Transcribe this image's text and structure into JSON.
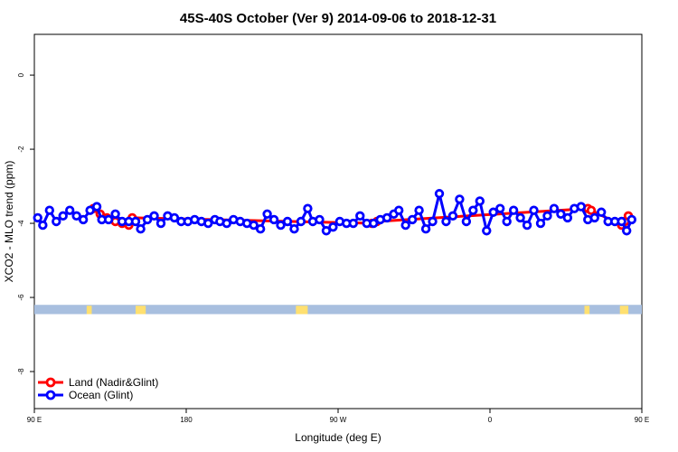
{
  "chart_data": {
    "type": "line",
    "title": "45S-40S October (Ver 9)   2014-09-06 to 2018-12-31",
    "xlabel": "Longitude (deg E)",
    "ylabel": "XCO2 - MLO trend (ppm)",
    "xlim": [
      90,
      450
    ],
    "ylim": [
      -9,
      1.1
    ],
    "x_ticks": [
      {
        "value": 90,
        "label": "90 E"
      },
      {
        "value": 180,
        "label": "180"
      },
      {
        "value": 270,
        "label": "90 W"
      },
      {
        "value": 360,
        "label": "0"
      },
      {
        "value": 450,
        "label": "90 E"
      },
      {
        "value": 540,
        "label": "180"
      }
    ],
    "y_ticks": [
      {
        "value": 0,
        "label": "0"
      },
      {
        "value": -2,
        "label": "-2"
      },
      {
        "value": -4,
        "label": "-4"
      },
      {
        "value": -6,
        "label": "-6"
      },
      {
        "value": -8,
        "label": "-8"
      }
    ],
    "legend_position": "bottom-left",
    "colors": {
      "land": "#ff0000",
      "ocean": "#0000ff",
      "sea_band": "#a8bfdf",
      "land_band": "#ffe070"
    },
    "series": [
      {
        "name": "Land (Nadir&Glint)",
        "color": "#ff0000",
        "points": [
          [
            125,
            -3.6
          ],
          [
            129,
            -3.75
          ],
          [
            133,
            -3.85
          ],
          [
            138,
            -3.95
          ],
          [
            142,
            -4.0
          ],
          [
            146,
            -4.05
          ],
          [
            148,
            -3.85
          ],
          [
            290,
            -4.0
          ],
          [
            293,
            -3.95
          ],
          [
            418,
            -3.6
          ],
          [
            420,
            -3.65
          ],
          [
            438,
            -4.05
          ],
          [
            440,
            -3.95
          ],
          [
            442,
            -3.8
          ]
        ]
      },
      {
        "name": "Ocean (Glint)",
        "color": "#0000ff",
        "points": [
          [
            92,
            -3.85
          ],
          [
            95,
            -4.05
          ],
          [
            99,
            -3.65
          ],
          [
            103,
            -3.95
          ],
          [
            107,
            -3.8
          ],
          [
            111,
            -3.65
          ],
          [
            115,
            -3.8
          ],
          [
            119,
            -3.9
          ],
          [
            123,
            -3.65
          ],
          [
            127,
            -3.55
          ],
          [
            130,
            -3.9
          ],
          [
            134,
            -3.9
          ],
          [
            138,
            -3.75
          ],
          [
            142,
            -3.95
          ],
          [
            146,
            -3.95
          ],
          [
            150,
            -3.95
          ],
          [
            153,
            -4.15
          ],
          [
            157,
            -3.9
          ],
          [
            161,
            -3.8
          ],
          [
            165,
            -4.0
          ],
          [
            169,
            -3.8
          ],
          [
            173,
            -3.85
          ],
          [
            177,
            -3.95
          ],
          [
            181,
            -3.95
          ],
          [
            185,
            -3.9
          ],
          [
            189,
            -3.95
          ],
          [
            193,
            -4.0
          ],
          [
            197,
            -3.9
          ],
          [
            200,
            -3.95
          ],
          [
            204,
            -4.0
          ],
          [
            208,
            -3.9
          ],
          [
            212,
            -3.95
          ],
          [
            216,
            -4.0
          ],
          [
            220,
            -4.05
          ],
          [
            224,
            -4.15
          ],
          [
            228,
            -3.75
          ],
          [
            232,
            -3.9
          ],
          [
            236,
            -4.05
          ],
          [
            240,
            -3.95
          ],
          [
            244,
            -4.15
          ],
          [
            248,
            -3.95
          ],
          [
            252,
            -3.6
          ],
          [
            255,
            -3.95
          ],
          [
            259,
            -3.9
          ],
          [
            263,
            -4.2
          ],
          [
            267,
            -4.1
          ],
          [
            271,
            -3.95
          ],
          [
            275,
            -4.0
          ],
          [
            279,
            -4.0
          ],
          [
            283,
            -3.8
          ],
          [
            287,
            -4.0
          ],
          [
            291,
            -4.0
          ],
          [
            295,
            -3.9
          ],
          [
            299,
            -3.85
          ],
          [
            303,
            -3.75
          ],
          [
            306,
            -3.65
          ],
          [
            310,
            -4.05
          ],
          [
            314,
            -3.9
          ],
          [
            318,
            -3.65
          ],
          [
            322,
            -4.15
          ],
          [
            326,
            -3.95
          ],
          [
            330,
            -3.2
          ],
          [
            334,
            -3.95
          ],
          [
            338,
            -3.8
          ],
          [
            342,
            -3.35
          ],
          [
            346,
            -3.95
          ],
          [
            350,
            -3.65
          ],
          [
            354,
            -3.4
          ],
          [
            358,
            -4.2
          ],
          [
            362,
            -3.7
          ],
          [
            366,
            -3.6
          ],
          [
            370,
            -3.95
          ],
          [
            374,
            -3.65
          ],
          [
            378,
            -3.85
          ],
          [
            382,
            -4.05
          ],
          [
            386,
            -3.65
          ],
          [
            390,
            -4.0
          ],
          [
            394,
            -3.8
          ],
          [
            398,
            -3.6
          ],
          [
            402,
            -3.75
          ],
          [
            406,
            -3.85
          ],
          [
            410,
            -3.6
          ],
          [
            414,
            -3.55
          ],
          [
            418,
            -3.9
          ],
          [
            422,
            -3.85
          ],
          [
            426,
            -3.7
          ],
          [
            430,
            -3.95
          ],
          [
            434,
            -3.95
          ],
          [
            438,
            -3.95
          ],
          [
            441,
            -4.2
          ],
          [
            444,
            -3.9
          ]
        ]
      }
    ]
  }
}
